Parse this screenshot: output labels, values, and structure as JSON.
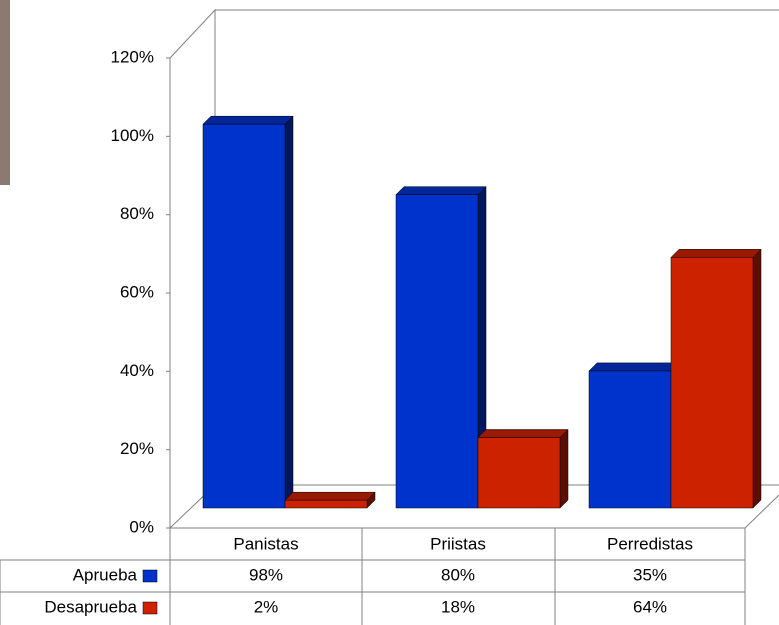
{
  "chart_data": {
    "type": "bar3d",
    "categories": [
      "Panistas",
      "Priistas",
      "Perredistas"
    ],
    "series": [
      {
        "name": "Aprueba",
        "color": "#0033cc",
        "values": [
          98,
          80,
          35
        ],
        "value_labels": [
          "98%",
          "80%",
          "35%"
        ]
      },
      {
        "name": "Desaprueba",
        "color": "#cc2200",
        "values": [
          2,
          18,
          64
        ],
        "value_labels": [
          "2%",
          "18%",
          "64%"
        ]
      }
    ],
    "ylim": [
      0,
      120
    ],
    "yticks": [
      {
        "value": 0,
        "label": "0%"
      },
      {
        "value": 20,
        "label": "20%"
      },
      {
        "value": 40,
        "label": "40%"
      },
      {
        "value": 60,
        "label": "60%"
      },
      {
        "value": 80,
        "label": "80%"
      },
      {
        "value": 100,
        "label": "100%"
      },
      {
        "value": 120,
        "label": "120%"
      }
    ]
  }
}
